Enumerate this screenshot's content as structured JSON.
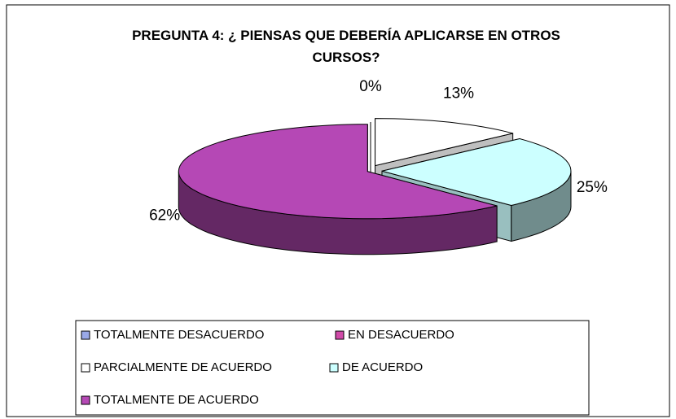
{
  "chart_data": {
    "type": "pie",
    "title": "PREGUNTA 4: ¿ PIENSAS QUE DEBERÍA APLICARSE EN OTROS CURSOS?",
    "categories": [
      "TOTALMENTE DESACUERDO",
      "EN DESACUERDO",
      "PARCIALMENTE DE ACUERDO",
      "DE ACUERDO",
      "TOTALMENTE DE ACUERDO"
    ],
    "values": [
      0,
      0,
      13,
      25,
      62
    ],
    "value_labels": [
      null,
      "0%",
      "13%",
      "25%",
      "62%"
    ],
    "colors": [
      "#9aa9e8",
      "#d04aa8",
      "#ffffff",
      "#ccffff",
      "#b548b5"
    ]
  }
}
